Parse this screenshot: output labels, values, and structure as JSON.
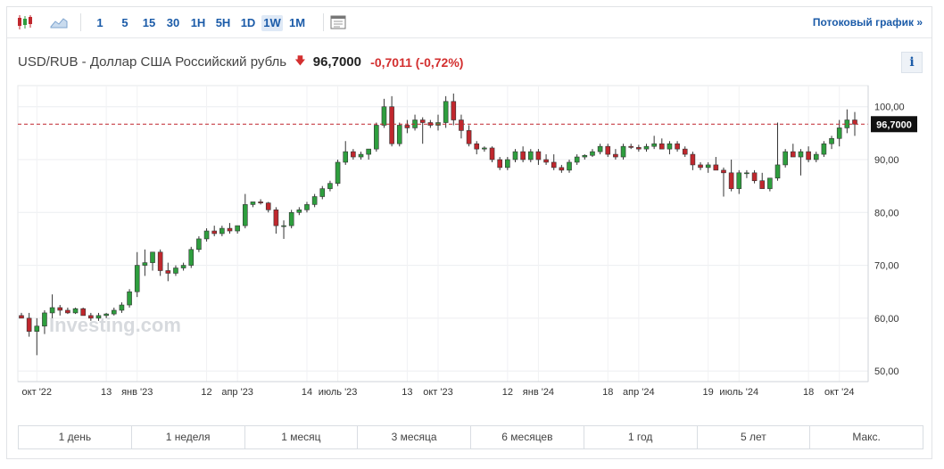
{
  "toolbar": {
    "chart_type_icons": [
      "candlestick-icon",
      "area-chart-icon"
    ],
    "intervals": [
      {
        "label": "1",
        "active": false
      },
      {
        "label": "5",
        "active": false
      },
      {
        "label": "15",
        "active": false
      },
      {
        "label": "30",
        "active": false
      },
      {
        "label": "1H",
        "active": false
      },
      {
        "label": "5H",
        "active": false
      },
      {
        "label": "1D",
        "active": false
      },
      {
        "label": "1W",
        "active": true
      },
      {
        "label": "1M",
        "active": false
      }
    ],
    "settings_icon": "chart-settings-icon",
    "stream_link": "Потоковый график »"
  },
  "header": {
    "symbol": "USD/RUB - Доллар США Российский рубль",
    "direction_icon": "arrow-down-icon",
    "price": "96,7000",
    "change": "-0,7011 (-0,72%)",
    "info": "i"
  },
  "watermark": "Investing.com",
  "ranges": [
    "1 день",
    "1 неделя",
    "1 месяц",
    "3 месяца",
    "6 месяцев",
    "1 год",
    "5 лет",
    "Макс."
  ],
  "colors": {
    "up": "#2e9e3e",
    "down": "#c0272d",
    "link": "#1b5ba8",
    "last_price_line": "#c0272d"
  },
  "chart_data": {
    "type": "candlestick",
    "y_ticks": [
      "50,00",
      "60,00",
      "70,00",
      "80,00",
      "90,00",
      "100,00"
    ],
    "ylim": [
      48,
      104
    ],
    "x_tick_labels": [
      {
        "label": "окт '22",
        "index": 2
      },
      {
        "label": "13",
        "index": 11
      },
      {
        "label": "янв '23",
        "index": 15
      },
      {
        "label": "12",
        "index": 24
      },
      {
        "label": "апр '23",
        "index": 28
      },
      {
        "label": "14",
        "index": 37
      },
      {
        "label": "июль '23",
        "index": 41
      },
      {
        "label": "13",
        "index": 50
      },
      {
        "label": "окт '23",
        "index": 54
      },
      {
        "label": "12",
        "index": 63
      },
      {
        "label": "янв '24",
        "index": 67
      },
      {
        "label": "18",
        "index": 76
      },
      {
        "label": "апр '24",
        "index": 80
      },
      {
        "label": "19",
        "index": 89
      },
      {
        "label": "июль '24",
        "index": 93
      },
      {
        "label": "18",
        "index": 102
      },
      {
        "label": "окт '24",
        "index": 106
      }
    ],
    "last_price": 96.7,
    "last_price_label": "96,7000",
    "candles": [
      [
        60.5,
        61.0,
        60.2,
        60.0
      ],
      [
        60.0,
        61.0,
        56.5,
        57.5
      ],
      [
        57.5,
        60.0,
        53.0,
        58.5
      ],
      [
        58.5,
        61.5,
        57.0,
        61.0
      ],
      [
        61.0,
        64.5,
        60.0,
        62.0
      ],
      [
        62.0,
        62.5,
        60.5,
        61.5
      ],
      [
        61.5,
        62.0,
        60.8,
        61.0
      ],
      [
        61.0,
        62.0,
        60.8,
        61.8
      ],
      [
        61.8,
        62.0,
        60.5,
        60.5
      ],
      [
        60.5,
        61.0,
        59.5,
        60.0
      ],
      [
        60.0,
        61.0,
        59.5,
        60.5
      ],
      [
        60.5,
        61.0,
        60.0,
        60.8
      ],
      [
        60.8,
        62.0,
        60.5,
        61.5
      ],
      [
        61.5,
        63.0,
        61.0,
        62.5
      ],
      [
        62.5,
        65.5,
        62.0,
        65.0
      ],
      [
        65.0,
        72.5,
        64.0,
        70.0
      ],
      [
        70.0,
        73.0,
        68.0,
        70.5
      ],
      [
        70.5,
        72.5,
        69.0,
        72.5
      ],
      [
        72.5,
        73.0,
        68.0,
        69.0
      ],
      [
        69.0,
        70.5,
        67.0,
        68.5
      ],
      [
        68.5,
        70.0,
        68.0,
        69.5
      ],
      [
        69.5,
        70.5,
        69.0,
        70.0
      ],
      [
        70.0,
        73.5,
        69.5,
        73.0
      ],
      [
        73.0,
        75.5,
        72.5,
        75.0
      ],
      [
        75.0,
        77.0,
        74.5,
        76.5
      ],
      [
        76.5,
        77.5,
        75.5,
        76.0
      ],
      [
        76.0,
        77.5,
        75.5,
        77.0
      ],
      [
        77.0,
        78.0,
        76.0,
        76.5
      ],
      [
        76.5,
        77.5,
        76.0,
        77.5
      ],
      [
        77.5,
        83.5,
        77.0,
        81.5
      ],
      [
        81.5,
        82.0,
        81.0,
        82.0
      ],
      [
        82.0,
        82.5,
        81.5,
        81.8
      ],
      [
        81.8,
        82.0,
        80.0,
        80.5
      ],
      [
        80.5,
        81.0,
        76.0,
        77.5
      ],
      [
        77.5,
        78.5,
        75.0,
        77.5
      ],
      [
        77.5,
        80.5,
        77.0,
        80.0
      ],
      [
        80.0,
        81.0,
        79.5,
        80.5
      ],
      [
        80.5,
        82.0,
        80.0,
        81.5
      ],
      [
        81.5,
        83.5,
        81.0,
        83.0
      ],
      [
        83.0,
        85.0,
        82.5,
        84.5
      ],
      [
        84.5,
        86.0,
        84.0,
        85.5
      ],
      [
        85.5,
        90.0,
        85.0,
        89.5
      ],
      [
        89.5,
        93.5,
        89.0,
        91.5
      ],
      [
        91.5,
        92.0,
        90.0,
        90.5
      ],
      [
        90.5,
        91.5,
        90.0,
        91.0
      ],
      [
        91.0,
        92.0,
        90.0,
        92.0
      ],
      [
        92.0,
        97.0,
        91.5,
        96.5
      ],
      [
        96.5,
        101.5,
        96.0,
        100.0
      ],
      [
        100.0,
        102.0,
        92.5,
        93.0
      ],
      [
        93.0,
        97.0,
        92.5,
        96.5
      ],
      [
        96.5,
        97.5,
        95.0,
        96.0
      ],
      [
        96.0,
        98.5,
        95.5,
        97.5
      ],
      [
        97.5,
        98.0,
        93.0,
        97.0
      ],
      [
        97.0,
        97.5,
        96.0,
        96.5
      ],
      [
        96.5,
        98.5,
        95.5,
        97.0
      ],
      [
        97.0,
        102.0,
        96.0,
        101.0
      ],
      [
        101.0,
        102.5,
        96.5,
        97.5
      ],
      [
        97.5,
        98.5,
        94.0,
        95.5
      ],
      [
        95.5,
        96.5,
        92.5,
        93.0
      ],
      [
        93.0,
        93.5,
        91.0,
        92.0
      ],
      [
        92.0,
        92.5,
        91.5,
        92.2
      ],
      [
        92.2,
        92.5,
        89.5,
        90.0
      ],
      [
        90.0,
        90.5,
        88.0,
        88.5
      ],
      [
        88.5,
        90.5,
        88.0,
        90.0
      ],
      [
        90.0,
        92.0,
        89.5,
        91.5
      ],
      [
        91.5,
        92.5,
        89.5,
        90.0
      ],
      [
        90.0,
        92.0,
        89.5,
        91.5
      ],
      [
        91.5,
        92.0,
        89.0,
        90.0
      ],
      [
        90.0,
        91.0,
        89.0,
        89.5
      ],
      [
        89.5,
        91.0,
        88.0,
        88.5
      ],
      [
        88.5,
        89.0,
        87.5,
        88.0
      ],
      [
        88.0,
        90.0,
        87.5,
        89.5
      ],
      [
        89.5,
        91.0,
        89.0,
        90.5
      ],
      [
        90.5,
        91.0,
        90.0,
        90.8
      ],
      [
        90.8,
        92.0,
        90.5,
        91.5
      ],
      [
        91.5,
        93.0,
        91.0,
        92.5
      ],
      [
        92.5,
        93.0,
        90.5,
        91.0
      ],
      [
        91.0,
        92.0,
        90.0,
        90.5
      ],
      [
        90.5,
        93.0,
        90.0,
        92.5
      ],
      [
        92.5,
        93.0,
        92.0,
        92.3
      ],
      [
        92.3,
        92.8,
        91.5,
        92.0
      ],
      [
        92.0,
        93.0,
        91.5,
        92.5
      ],
      [
        92.5,
        94.5,
        92.0,
        93.0
      ],
      [
        93.0,
        94.0,
        92.5,
        92.0
      ],
      [
        92.0,
        93.5,
        91.0,
        93.0
      ],
      [
        93.0,
        93.5,
        91.5,
        92.0
      ],
      [
        92.0,
        92.5,
        90.5,
        91.0
      ],
      [
        91.0,
        91.5,
        88.0,
        89.0
      ],
      [
        89.0,
        89.5,
        88.0,
        88.5
      ],
      [
        88.5,
        89.5,
        87.5,
        89.0
      ],
      [
        89.0,
        90.5,
        88.5,
        88.0
      ],
      [
        88.0,
        88.5,
        83.0,
        87.5
      ],
      [
        87.5,
        90.0,
        84.0,
        84.5
      ],
      [
        84.5,
        88.0,
        83.5,
        87.5
      ],
      [
        87.5,
        88.0,
        86.5,
        87.5
      ],
      [
        87.5,
        88.0,
        85.5,
        86.0
      ],
      [
        86.0,
        87.5,
        85.0,
        84.5
      ],
      [
        84.5,
        86.5,
        84.0,
        86.5
      ],
      [
        86.5,
        97.0,
        86.0,
        89.0
      ],
      [
        89.0,
        92.0,
        88.5,
        91.5
      ],
      [
        91.5,
        93.0,
        90.5,
        90.5
      ],
      [
        90.5,
        92.0,
        87.0,
        91.5
      ],
      [
        91.5,
        92.5,
        89.5,
        90.0
      ],
      [
        90.0,
        91.5,
        89.5,
        91.0
      ],
      [
        91.0,
        93.5,
        90.5,
        93.0
      ],
      [
        93.0,
        94.5,
        92.0,
        94.0
      ],
      [
        94.0,
        97.5,
        92.5,
        96.0
      ],
      [
        96.0,
        99.5,
        95.0,
        97.5
      ],
      [
        97.5,
        99.0,
        94.5,
        96.7
      ]
    ]
  }
}
